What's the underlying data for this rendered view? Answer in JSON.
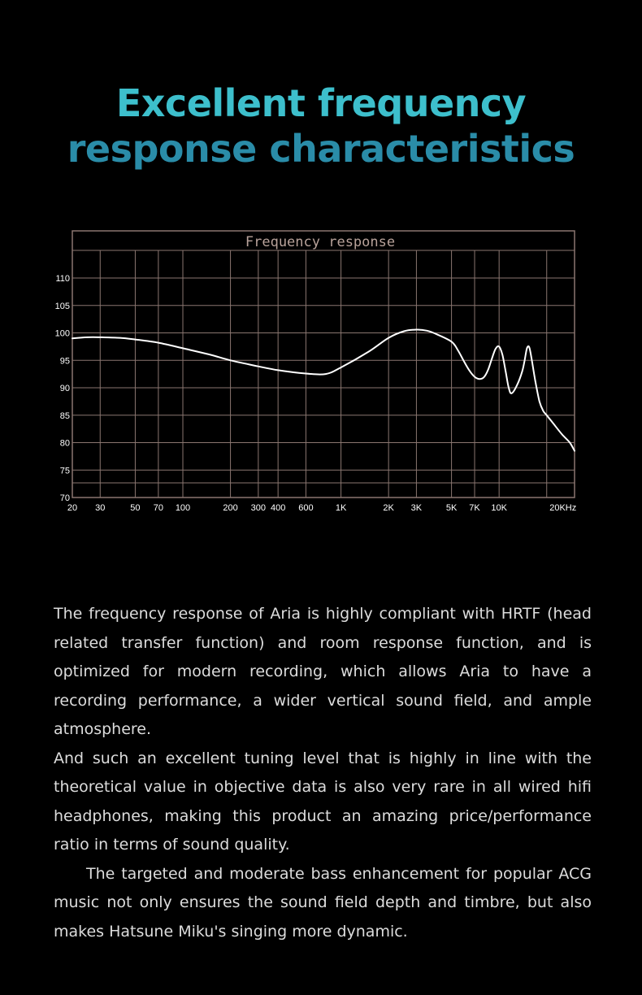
{
  "headline": {
    "line1": "Excellent frequency",
    "line2": "response characteristics"
  },
  "colors": {
    "headline_top": "#3dbfcc",
    "headline_bottom": "#2a8ca8",
    "grid": "#8a7670",
    "curve": "#ffffff",
    "chart_title": "#b8a29a"
  },
  "chart_data": {
    "type": "line",
    "title": "Frequency response",
    "x_scale": "log",
    "xlim": [
      20,
      30000
    ],
    "ylim": [
      70,
      115
    ],
    "x_ticks": [
      {
        "value": 20,
        "label": "20"
      },
      {
        "value": 30,
        "label": "30"
      },
      {
        "value": 50,
        "label": "50"
      },
      {
        "value": 70,
        "label": "70"
      },
      {
        "value": 100,
        "label": "100"
      },
      {
        "value": 200,
        "label": "200"
      },
      {
        "value": 300,
        "label": "300"
      },
      {
        "value": 400,
        "label": "400"
      },
      {
        "value": 600,
        "label": "600"
      },
      {
        "value": 1000,
        "label": "1K"
      },
      {
        "value": 2000,
        "label": "2K"
      },
      {
        "value": 3000,
        "label": "3K"
      },
      {
        "value": 5000,
        "label": "5K"
      },
      {
        "value": 7000,
        "label": "7K"
      },
      {
        "value": 10000,
        "label": "10K"
      },
      {
        "value": 20000,
        "label": "20KHz"
      }
    ],
    "y_ticks": [
      {
        "value": 70,
        "label": "70"
      },
      {
        "value": 75,
        "label": "75"
      },
      {
        "value": 80,
        "label": "80"
      },
      {
        "value": 85,
        "label": "85"
      },
      {
        "value": 90,
        "label": "90"
      },
      {
        "value": 95,
        "label": "95"
      },
      {
        "value": 100,
        "label": "100"
      },
      {
        "value": 105,
        "label": "105"
      },
      {
        "value": 110,
        "label": "110"
      }
    ],
    "series": [
      {
        "x": [
          20,
          25,
          30,
          40,
          50,
          70,
          100,
          150,
          200,
          300,
          400,
          600,
          800,
          1000,
          1500,
          2000,
          2500,
          3000,
          3500,
          4000,
          5000,
          5500,
          6000,
          6500,
          7000,
          7500,
          8000,
          8500,
          9000,
          9500,
          10000,
          10500,
          11000,
          11500,
          12000,
          13000,
          14000,
          14500,
          15000,
          15500,
          16000,
          17000,
          18000,
          19000,
          20000,
          22000,
          25000,
          28000,
          30000
        ],
        "y": [
          99.0,
          99.2,
          99.2,
          99.1,
          98.8,
          98.2,
          97.2,
          96.0,
          95.0,
          93.9,
          93.2,
          92.6,
          92.5,
          93.7,
          96.6,
          99.1,
          100.3,
          100.6,
          100.4,
          99.8,
          98.4,
          96.8,
          94.8,
          93.1,
          92.0,
          91.6,
          91.9,
          93.2,
          95.3,
          97.1,
          97.5,
          96.0,
          93.0,
          90.0,
          89.0,
          90.5,
          93.0,
          95.0,
          97.2,
          97.4,
          95.5,
          91.0,
          87.5,
          85.8,
          85.0,
          83.5,
          81.5,
          80.0,
          78.5
        ]
      }
    ]
  },
  "paragraphs": [
    "The frequency response of Aria is highly compliant with HRTF (head related transfer function) and room response function, and is optimized for modern recording, which allows Aria to have a recording performance, a wider vertical sound field, and ample atmosphere.",
    "And such an excellent tuning level that is highly in line with the theoretical value in objective data is also very rare in all wired hifi headphones, making this product an amazing price/performance ratio in terms of sound quality.",
    "The targeted and moderate bass enhancement for popular ACG music not only ensures the sound field depth and timbre, but also makes Hatsune Miku's singing more dynamic."
  ]
}
